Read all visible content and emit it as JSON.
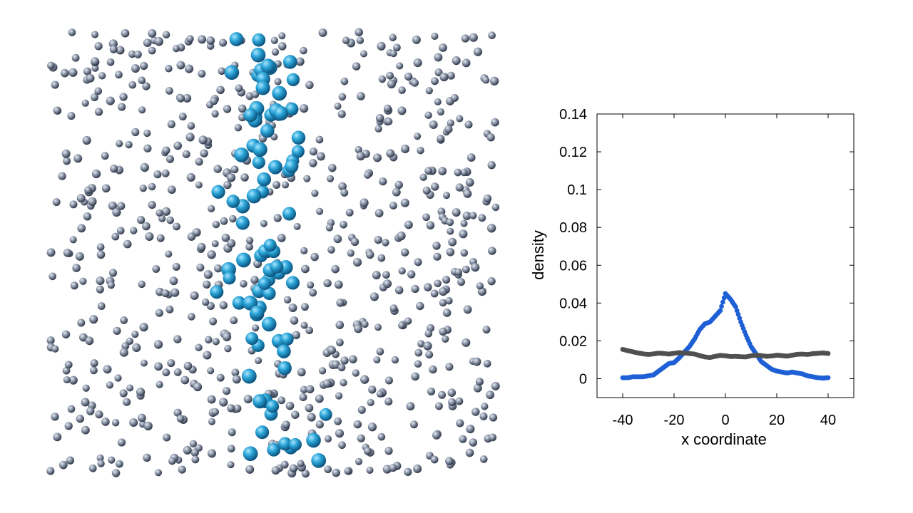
{
  "colors": {
    "small_particle": "#8d98aa",
    "large_particle": "#29a3d6",
    "series_blue": "#1f5fd6",
    "series_gray": "#505050",
    "axis": "#000000"
  },
  "snapshot": {
    "description_icon": "particle-snapshot",
    "small_count": 720,
    "large_count": 85,
    "large_x_center_fraction": 0.5,
    "large_x_spread_fraction": 0.14
  },
  "chart_data": {
    "type": "scatter",
    "xlabel": "x coordinate",
    "ylabel": "density",
    "xlim": [
      -50,
      50
    ],
    "ylim": [
      -0.01,
      0.14
    ],
    "x_ticks": [
      -40,
      -20,
      0,
      20,
      40
    ],
    "x_tick_labels": [
      "-40",
      "-20",
      "0",
      "20",
      "40"
    ],
    "y_ticks": [
      0,
      0.02,
      0.04,
      0.06,
      0.08,
      0.1,
      0.12,
      0.14
    ],
    "y_tick_labels": [
      "0",
      "0.02",
      "0.04",
      "0.06",
      "0.08",
      "0.1",
      "0.12",
      "0.14"
    ],
    "grid": false,
    "legend": "none",
    "series": [
      {
        "color": "#1f5fd6",
        "x": [
          -40,
          -38,
          -36,
          -34,
          -32,
          -30,
          -28,
          -26,
          -24,
          -22,
          -20,
          -18,
          -16,
          -14,
          -12,
          -10,
          -8,
          -6,
          -4,
          -2,
          0,
          2,
          4,
          6,
          8,
          10,
          12,
          14,
          16,
          18,
          20,
          22,
          24,
          26,
          28,
          30,
          32,
          34,
          36,
          38,
          40
        ],
        "y": [
          0.0005,
          0.0005,
          0.001,
          0.001,
          0.001,
          0.0015,
          0.002,
          0.004,
          0.006,
          0.008,
          0.0085,
          0.011,
          0.014,
          0.017,
          0.021,
          0.026,
          0.029,
          0.03,
          0.033,
          0.036,
          0.045,
          0.042,
          0.038,
          0.03,
          0.023,
          0.017,
          0.013,
          0.009,
          0.007,
          0.005,
          0.004,
          0.0035,
          0.003,
          0.0035,
          0.003,
          0.0025,
          0.0015,
          0.001,
          0.0005,
          0.0003,
          0.0005
        ]
      },
      {
        "color": "#505050",
        "x": [
          -40,
          -38,
          -36,
          -34,
          -32,
          -30,
          -28,
          -26,
          -24,
          -22,
          -20,
          -18,
          -16,
          -14,
          -12,
          -10,
          -8,
          -6,
          -4,
          -2,
          0,
          2,
          4,
          6,
          8,
          10,
          12,
          14,
          16,
          18,
          20,
          22,
          24,
          26,
          28,
          30,
          32,
          34,
          36,
          38,
          40
        ],
        "y": [
          0.0155,
          0.0148,
          0.0142,
          0.0136,
          0.0131,
          0.0128,
          0.0131,
          0.0135,
          0.0133,
          0.013,
          0.0134,
          0.0138,
          0.0136,
          0.0133,
          0.013,
          0.0122,
          0.0115,
          0.0112,
          0.0118,
          0.0123,
          0.0121,
          0.0117,
          0.0118,
          0.0116,
          0.0115,
          0.0121,
          0.0124,
          0.0122,
          0.0118,
          0.012,
          0.0124,
          0.0122,
          0.0119,
          0.0124,
          0.0129,
          0.013,
          0.0128,
          0.0132,
          0.0134,
          0.0136,
          0.0133
        ]
      }
    ]
  }
}
